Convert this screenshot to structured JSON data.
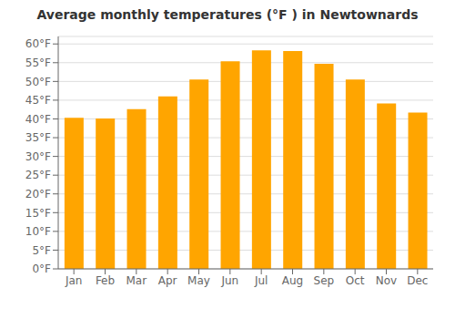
{
  "chart_data": {
    "type": "bar",
    "title": "Average monthly temperatures (°F ) in Newtownards",
    "categories": [
      "Jan",
      "Feb",
      "Mar",
      "Apr",
      "May",
      "Jun",
      "Jul",
      "Aug",
      "Sep",
      "Oct",
      "Nov",
      "Dec"
    ],
    "values": [
      40.3,
      40.1,
      42.6,
      46.0,
      50.5,
      55.4,
      58.3,
      58.1,
      54.7,
      50.5,
      44.1,
      41.7
    ],
    "color": "#FFA500",
    "ylim": [
      0,
      62
    ],
    "yticks": [
      {
        "value": 0,
        "label": "0°F"
      },
      {
        "value": 5,
        "label": "5°F"
      },
      {
        "value": 10,
        "label": "10°F"
      },
      {
        "value": 15,
        "label": "15°F"
      },
      {
        "value": 20,
        "label": "20°F"
      },
      {
        "value": 25,
        "label": "25°F"
      },
      {
        "value": 30,
        "label": "30°F"
      },
      {
        "value": 35,
        "label": "35°F"
      },
      {
        "value": 40,
        "label": "40°F"
      },
      {
        "value": 45,
        "label": "45°F"
      },
      {
        "value": 50,
        "label": "50°F"
      },
      {
        "value": 55,
        "label": "55°F"
      },
      {
        "value": 60,
        "label": "60°F"
      }
    ],
    "grid": true
  }
}
